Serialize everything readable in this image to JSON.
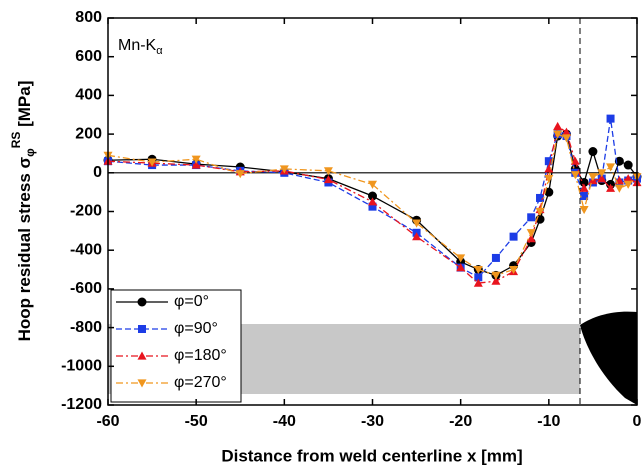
{
  "chart_data": {
    "type": "line",
    "xlabel": "Distance from weld centerline x [mm]",
    "ylabel": {
      "main": "Hoop residual stress σ",
      "sub": "φ",
      "sup": "RS",
      "end": " [MPa]"
    },
    "annotation": {
      "main": "Mn-K",
      "sub": "α"
    },
    "x": [
      -60,
      -55,
      -50,
      -45,
      -40,
      -35,
      -30,
      -25,
      -20,
      -18,
      -16,
      -14,
      -12,
      -11,
      -10,
      -9,
      -8,
      -7,
      -6,
      -5,
      -4,
      -3,
      -2,
      -1,
      0
    ],
    "series": [
      {
        "name": "φ=0°",
        "color": "#000000",
        "marker": "circle",
        "dash": "solid",
        "values": [
          65,
          70,
          45,
          30,
          5,
          -30,
          -120,
          -245,
          -460,
          -500,
          -530,
          -480,
          -360,
          -240,
          -100,
          190,
          200,
          20,
          -50,
          110,
          -40,
          -60,
          60,
          40,
          -20
        ]
      },
      {
        "name": "φ=90°",
        "color": "#1c3ce6",
        "marker": "square",
        "dash": "dash",
        "values": [
          60,
          40,
          40,
          10,
          0,
          -50,
          -175,
          -310,
          -490,
          -540,
          -440,
          -330,
          -230,
          -130,
          60,
          200,
          190,
          0,
          -120,
          -50,
          -30,
          280,
          -50,
          -40,
          -30
        ]
      },
      {
        "name": "φ=180°",
        "color": "#e8141e",
        "marker": "triangle-up",
        "dash": "dashdot",
        "values": [
          60,
          50,
          40,
          5,
          10,
          -35,
          -150,
          -330,
          -490,
          -570,
          -560,
          -510,
          -340,
          -190,
          20,
          240,
          210,
          60,
          -80,
          -40,
          -30,
          -80,
          -40,
          -30,
          -50
        ]
      },
      {
        "name": "φ=270°",
        "color": "#f0961e",
        "marker": "triangle-down",
        "dash": "dashdot",
        "values": [
          90,
          55,
          70,
          -5,
          20,
          10,
          -60,
          -260,
          -440,
          -500,
          -530,
          -500,
          -310,
          -200,
          -30,
          200,
          180,
          -10,
          -190,
          -20,
          0,
          30,
          -80,
          -60,
          -20
        ]
      }
    ],
    "xlim": [
      -60,
      0
    ],
    "xticks": [
      -60,
      -50,
      -40,
      -30,
      -20,
      -10,
      0
    ],
    "ylim": [
      -1200,
      800
    ],
    "yticks": [
      -1200,
      -1000,
      -800,
      -600,
      -400,
      -200,
      0,
      200,
      400,
      600,
      800
    ],
    "legend": "lower left"
  }
}
